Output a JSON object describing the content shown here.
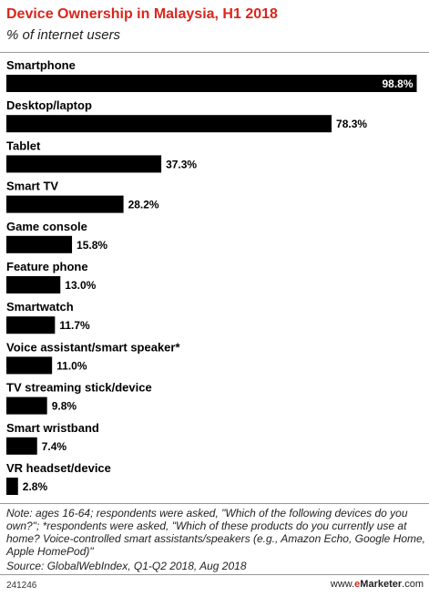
{
  "title": "Device Ownership in Malaysia, H1 2018",
  "subtitle": "% of internet users",
  "chart_data": {
    "type": "bar",
    "orientation": "horizontal",
    "title": "Device Ownership in Malaysia, H1 2018",
    "subtitle": "% of internet users",
    "categories": [
      "Smartphone",
      "Desktop/laptop",
      "Tablet",
      "Smart TV",
      "Game console",
      "Feature phone",
      "Smartwatch",
      "Voice assistant/smart speaker*",
      "TV streaming stick/device",
      "Smart wristband",
      "VR headset/device"
    ],
    "values": [
      98.8,
      78.3,
      37.3,
      28.2,
      15.8,
      13.0,
      11.7,
      11.0,
      9.8,
      7.4,
      2.8
    ],
    "value_labels": [
      "98.8%",
      "78.3%",
      "37.3%",
      "28.2%",
      "15.8%",
      "13.0%",
      "11.7%",
      "11.0%",
      "9.8%",
      "7.4%",
      "2.8%"
    ],
    "bar_color": "#000000",
    "xlim": [
      0,
      100
    ],
    "grid": false
  },
  "note": "Note: ages 16-64; respondents were asked, \"Which of the following devices do you own?\"; *respondents were asked, \"Which of these products do you currently use at home? Voice-controlled smart assistants/speakers (e.g., Amazon Echo, Google Home, Apple HomePod)\"",
  "source": "Source: GlobalWebIndex, Q1-Q2 2018, Aug 2018",
  "footer_id": "241246",
  "brand": {
    "prefix": "www.",
    "e": "e",
    "name": "Marketer",
    "suffix": ".com"
  },
  "colors": {
    "title": "#d9261c",
    "bar": "#000000"
  }
}
